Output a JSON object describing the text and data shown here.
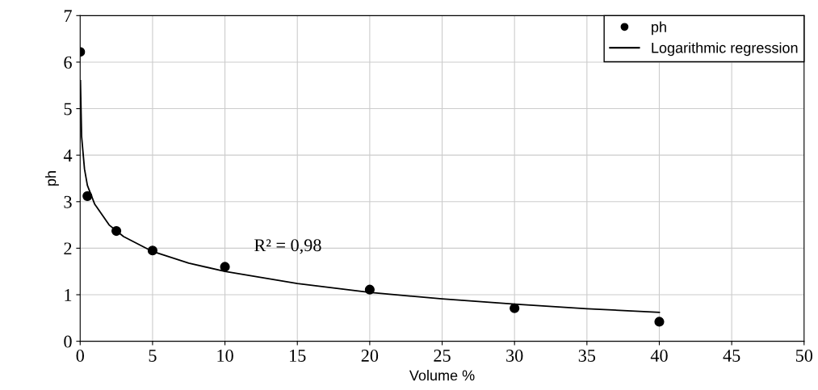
{
  "chart_data": {
    "type": "scatter",
    "xlabel": "Volume %",
    "ylabel": "ph",
    "series": [
      {
        "name": "ph",
        "color": "#000000",
        "marker": "circle",
        "x": [
          0,
          0.5,
          2.5,
          5,
          10,
          20,
          30,
          40
        ],
        "values": [
          6.22,
          3.12,
          2.37,
          1.95,
          1.6,
          1.11,
          0.71,
          0.42
        ]
      },
      {
        "name": "Logarithmic regression",
        "type": "line",
        "color": "#000000",
        "marker": "none",
        "line_style": "solid",
        "x": [
          0.02,
          0.1,
          0.3,
          0.5,
          1,
          2,
          3,
          5,
          7.5,
          10,
          15,
          20,
          25,
          30,
          35,
          40
        ],
        "values": [
          5.6,
          4.4,
          3.7,
          3.35,
          2.95,
          2.5,
          2.25,
          1.93,
          1.68,
          1.5,
          1.24,
          1.05,
          0.91,
          0.8,
          0.7,
          0.62
        ]
      }
    ],
    "xlim": [
      0,
      50
    ],
    "xticks": [
      0,
      5,
      10,
      15,
      20,
      25,
      30,
      35,
      40,
      45,
      50
    ],
    "ylim": [
      0,
      7
    ],
    "yticks": [
      0,
      1,
      2,
      3,
      4,
      5,
      6,
      7
    ],
    "grid": true,
    "legend": "top right",
    "annotations": [
      "R² = 0,98"
    ]
  }
}
